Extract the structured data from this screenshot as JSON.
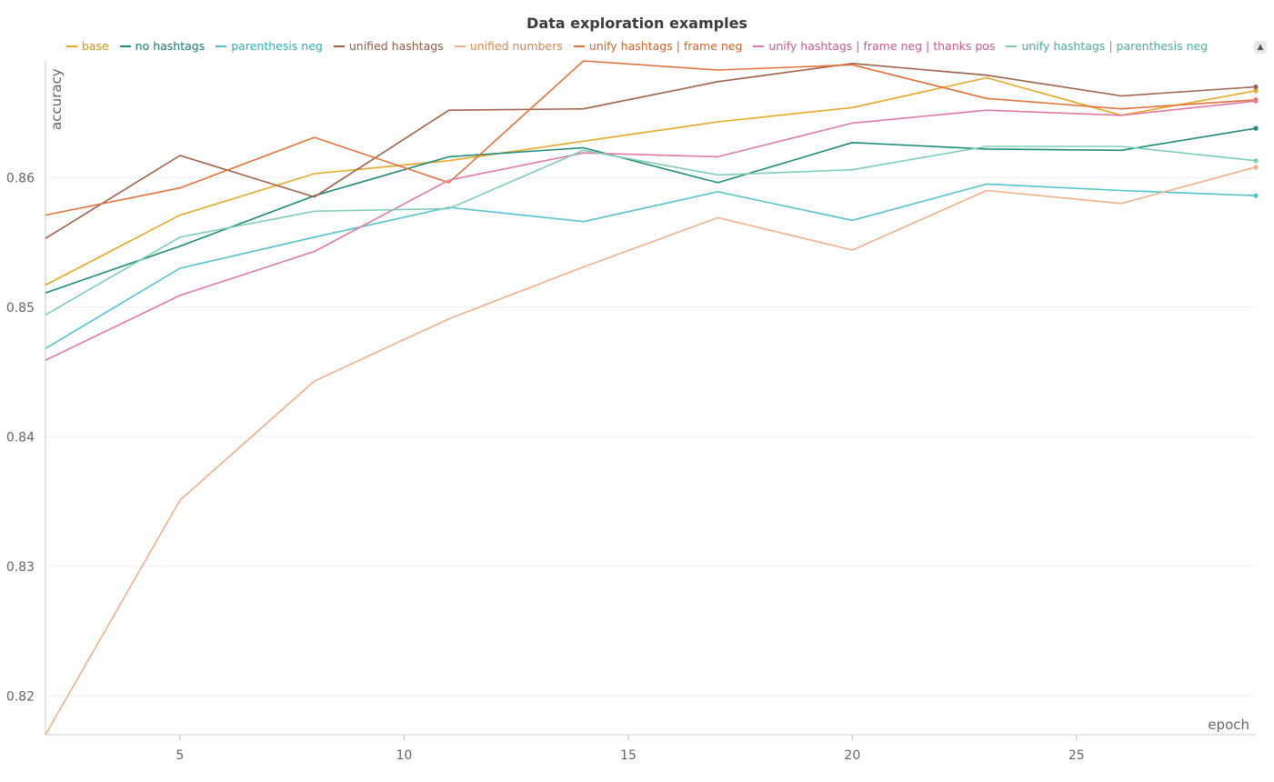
{
  "chart_data": {
    "type": "line",
    "title": "Data exploration examples",
    "xlabel": "epoch",
    "ylabel": "accuracy",
    "xlim": [
      2,
      29
    ],
    "ylim": [
      0.817,
      0.869
    ],
    "xticks": [
      5,
      10,
      15,
      20,
      25
    ],
    "yticks": [
      0.82,
      0.83,
      0.84,
      0.85,
      0.86
    ],
    "grid": true,
    "legend_position": "top",
    "x": [
      2,
      5,
      8,
      11,
      14,
      17,
      20,
      23,
      26,
      29
    ],
    "series": [
      {
        "name": "base",
        "color": "#e6a82a",
        "values": [
          0.8517,
          0.8571,
          0.8603,
          0.8613,
          0.8628,
          0.8643,
          0.8654,
          0.8677,
          0.8648,
          0.8667
        ]
      },
      {
        "name": "no hashtags",
        "color": "#1f8a78",
        "values": [
          0.8511,
          0.8547,
          0.8586,
          0.8616,
          0.8623,
          0.8596,
          0.8627,
          0.8622,
          0.8621,
          0.8638
        ]
      },
      {
        "name": "parenthesis neg",
        "color": "#55c2cc",
        "values": [
          0.8468,
          0.853,
          0.8554,
          0.8577,
          0.8566,
          0.8589,
          0.8567,
          0.8595,
          0.859,
          0.8586
        ]
      },
      {
        "name": "unified hashtags",
        "color": "#a0614a",
        "values": [
          0.8553,
          0.8617,
          0.8585,
          0.8652,
          0.8653,
          0.8674,
          0.8688,
          0.8679,
          0.8663,
          0.867
        ]
      },
      {
        "name": "unified numbers",
        "color": "#efb08e",
        "values": [
          0.817,
          0.8351,
          0.8443,
          0.8491,
          0.8531,
          0.8569,
          0.8544,
          0.859,
          0.858,
          0.8608
        ]
      },
      {
        "name": "unify hashtags | frame neg",
        "color": "#e0733d",
        "values": [
          0.8571,
          0.8592,
          0.8631,
          0.8596,
          0.869,
          0.8683,
          0.8687,
          0.8661,
          0.8653,
          0.866
        ]
      },
      {
        "name": "unify hashtags | frame neg | thanks pos",
        "color": "#e07aa3",
        "values": [
          0.8459,
          0.8509,
          0.8543,
          0.8598,
          0.8619,
          0.8616,
          0.8642,
          0.8652,
          0.8648,
          0.8659
        ]
      },
      {
        "name": "unify hashtags | parenthesis neg",
        "color": "#7fcdb8",
        "values": [
          0.8494,
          0.8554,
          0.8574,
          0.8576,
          0.8621,
          0.8602,
          0.8606,
          0.8624,
          0.8624,
          0.8613
        ]
      }
    ]
  },
  "legend_text_colors": [
    "#d4980f",
    "#1a7a6a",
    "#2fb0bf",
    "#975a42",
    "#d9854f",
    "#d2642a",
    "#cc5a8a",
    "#4cae93"
  ],
  "legend_toggle_icon": "sort-arrows-icon"
}
